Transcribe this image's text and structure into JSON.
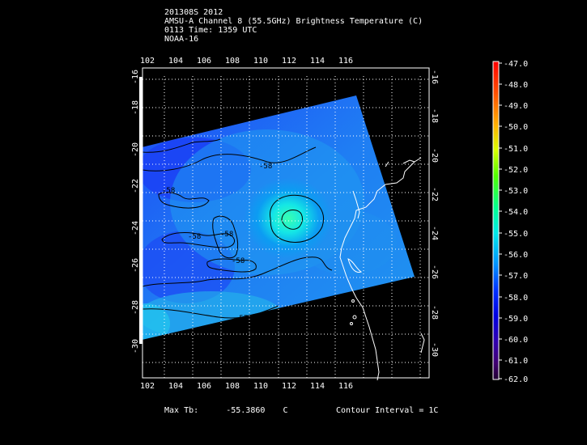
{
  "header": {
    "line1": "201308S 2012",
    "line2": "AMSU-A Channel 8 (55.5GHz) Brightness Temperature (C)",
    "line3": "0113 Time: 1359 UTC",
    "line4": "NOAA-16"
  },
  "map": {
    "lon_ticks": [
      "102",
      "104",
      "106",
      "108",
      "110",
      "112",
      "114",
      "116"
    ],
    "lat_ticks": [
      "-16",
      "-18",
      "-20",
      "-22",
      "-24",
      "-26",
      "-28",
      "-30"
    ],
    "contour_labels": [
      "-58",
      "-58",
      "-58",
      "-58",
      "-58",
      "-57"
    ],
    "colors": {
      "background": "#000000",
      "swath_low": "#1a3cff",
      "swath_high": "#00ddee"
    }
  },
  "colorbar": {
    "labels": [
      "-47.0",
      "-48.0",
      "-49.0",
      "-50.0",
      "-51.0",
      "-52.0",
      "-53.0",
      "-54.0",
      "-55.0",
      "-56.0",
      "-57.0",
      "-58.0",
      "-59.0",
      "-60.0",
      "-61.0",
      "-62.0"
    ]
  },
  "footer": {
    "max_label": "Max Tb:",
    "max_value": "-55.3860",
    "max_unit": "C",
    "contour_interval": "Contour Interval = 1C"
  }
}
